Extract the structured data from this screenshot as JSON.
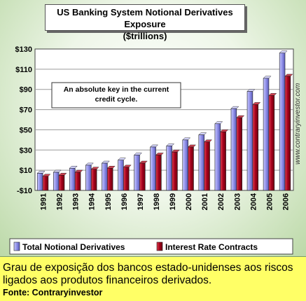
{
  "chart_data": {
    "type": "bar",
    "title": "US Banking System Notional Derivatives Exposure",
    "subtitle": "($trillions)",
    "annotation": "An absolute key in the current credit cycle.",
    "credit": "www.contraryinvestor.com",
    "categories": [
      "1991",
      "1992",
      "1993",
      "1994",
      "1995",
      "1996",
      "1997",
      "1998",
      "1999",
      "2000",
      "2001",
      "2002",
      "2003",
      "2004",
      "2005",
      "2006"
    ],
    "series": [
      {
        "name": "Total Notional Derivatives",
        "color": "#8f8fe8",
        "values": [
          7,
          8,
          12,
          15,
          17,
          20,
          25,
          33,
          34,
          40,
          45,
          56,
          71,
          88,
          101,
          126
        ]
      },
      {
        "name": "Interest Rate Contracts",
        "color": "#a5001c",
        "values": [
          4,
          5,
          8,
          11,
          12,
          13,
          17,
          25,
          28,
          33,
          38,
          48,
          62,
          75,
          84,
          103
        ]
      }
    ],
    "ylim": [
      -10,
      130
    ],
    "yticks": [
      "$130",
      "$110",
      "$90",
      "$70",
      "$50",
      "$30",
      "$10",
      "-$10"
    ],
    "ytick_values": [
      130,
      110,
      90,
      70,
      50,
      30,
      10,
      -10
    ],
    "legend_position": "bottom",
    "grid": true
  },
  "caption": {
    "text": "Grau de exposição dos bancos estado-unidenses aos riscos ligados aos produtos financeiros derivados.",
    "source": "Fonte: Contraryinvestor"
  }
}
